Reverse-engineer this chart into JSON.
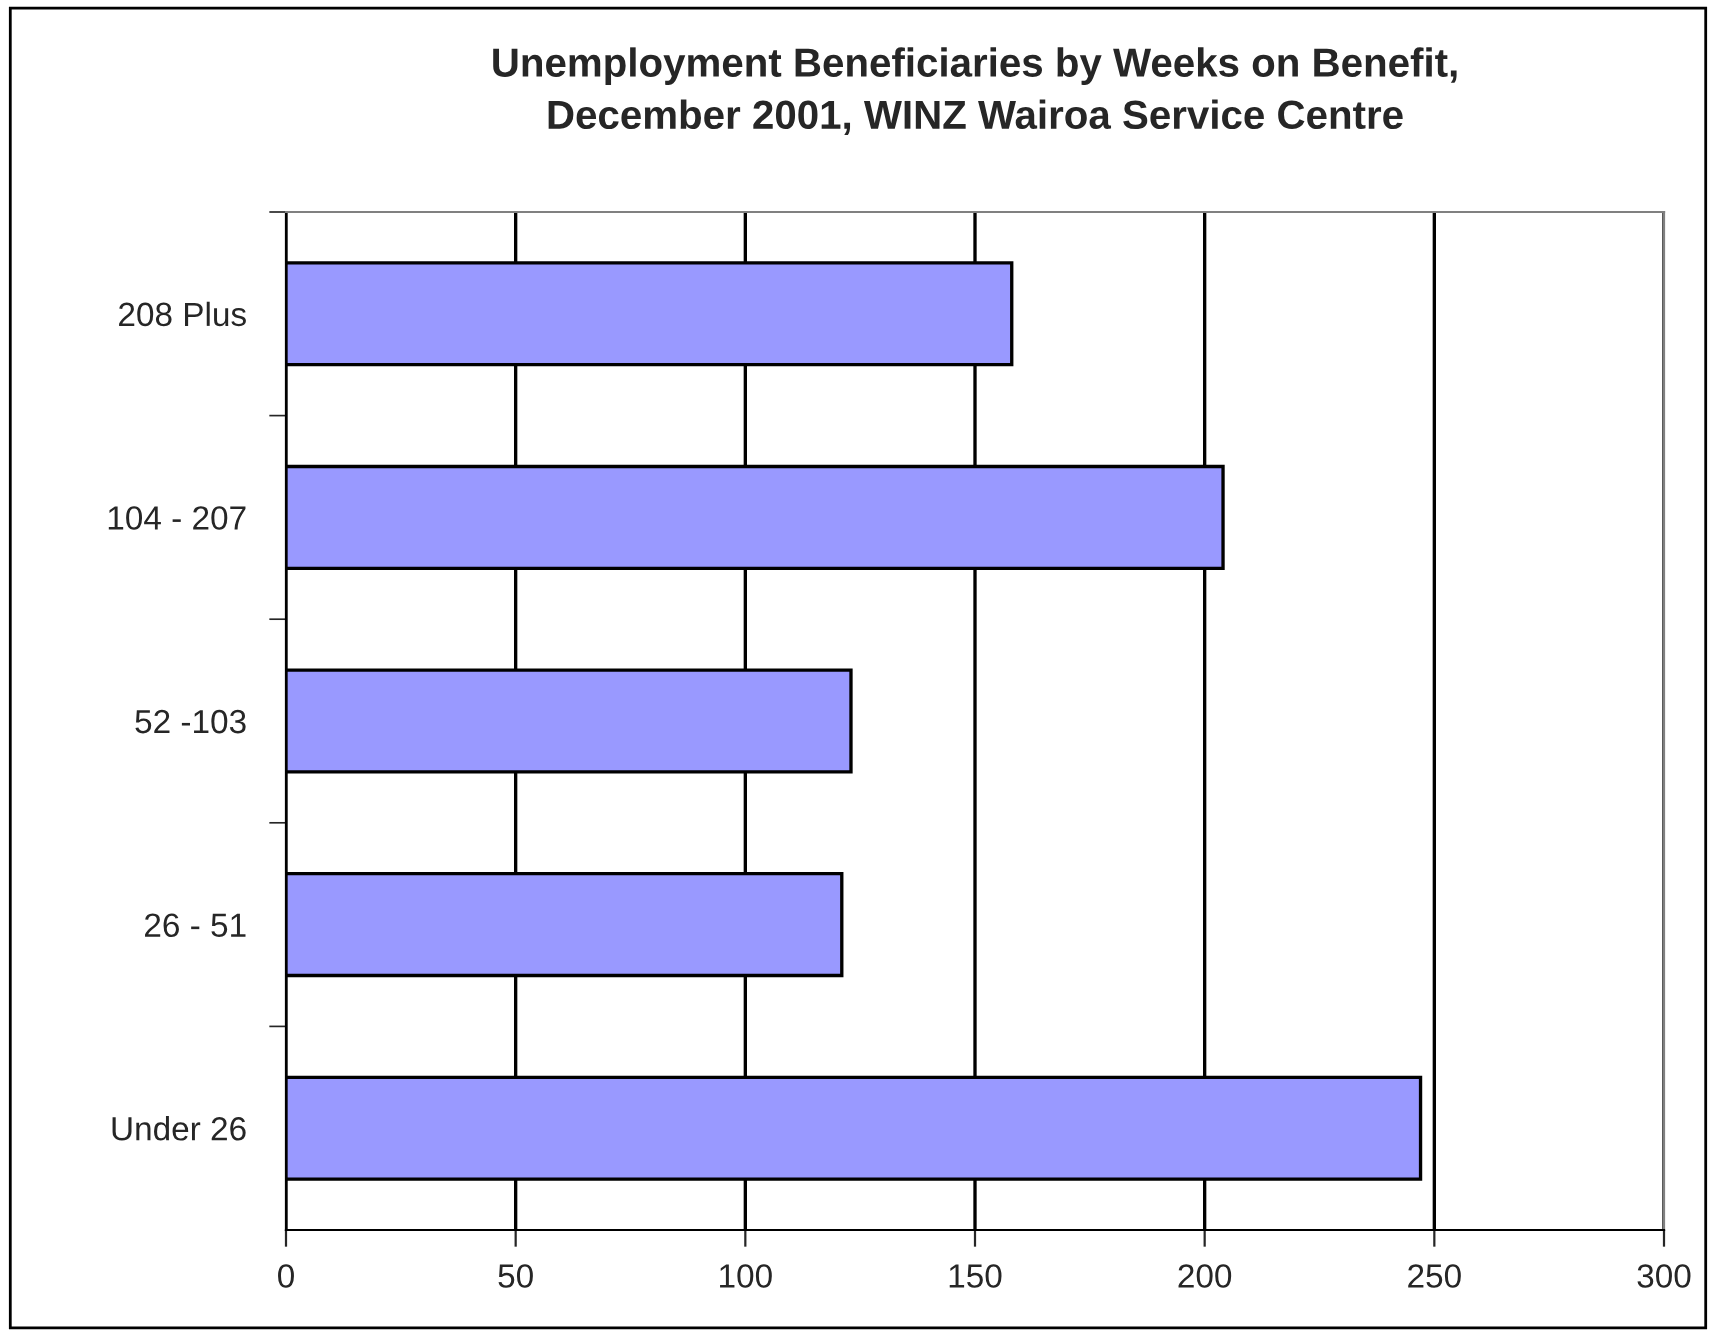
{
  "chart_data": {
    "type": "bar",
    "orientation": "horizontal",
    "title": "Unemployment Beneficiaries by Weeks on Benefit,\nDecember 2001, WINZ Wairoa Service Centre",
    "categories": [
      "208 Plus",
      "104 - 207",
      "52 -103",
      "26 - 51",
      "Under 26"
    ],
    "values": [
      158,
      204,
      123,
      121,
      247
    ],
    "color": "#9999ff",
    "xlim": [
      0,
      300
    ],
    "xticks": [
      0,
      50,
      100,
      150,
      200,
      250,
      300
    ],
    "grid": "x",
    "legend": false
  }
}
